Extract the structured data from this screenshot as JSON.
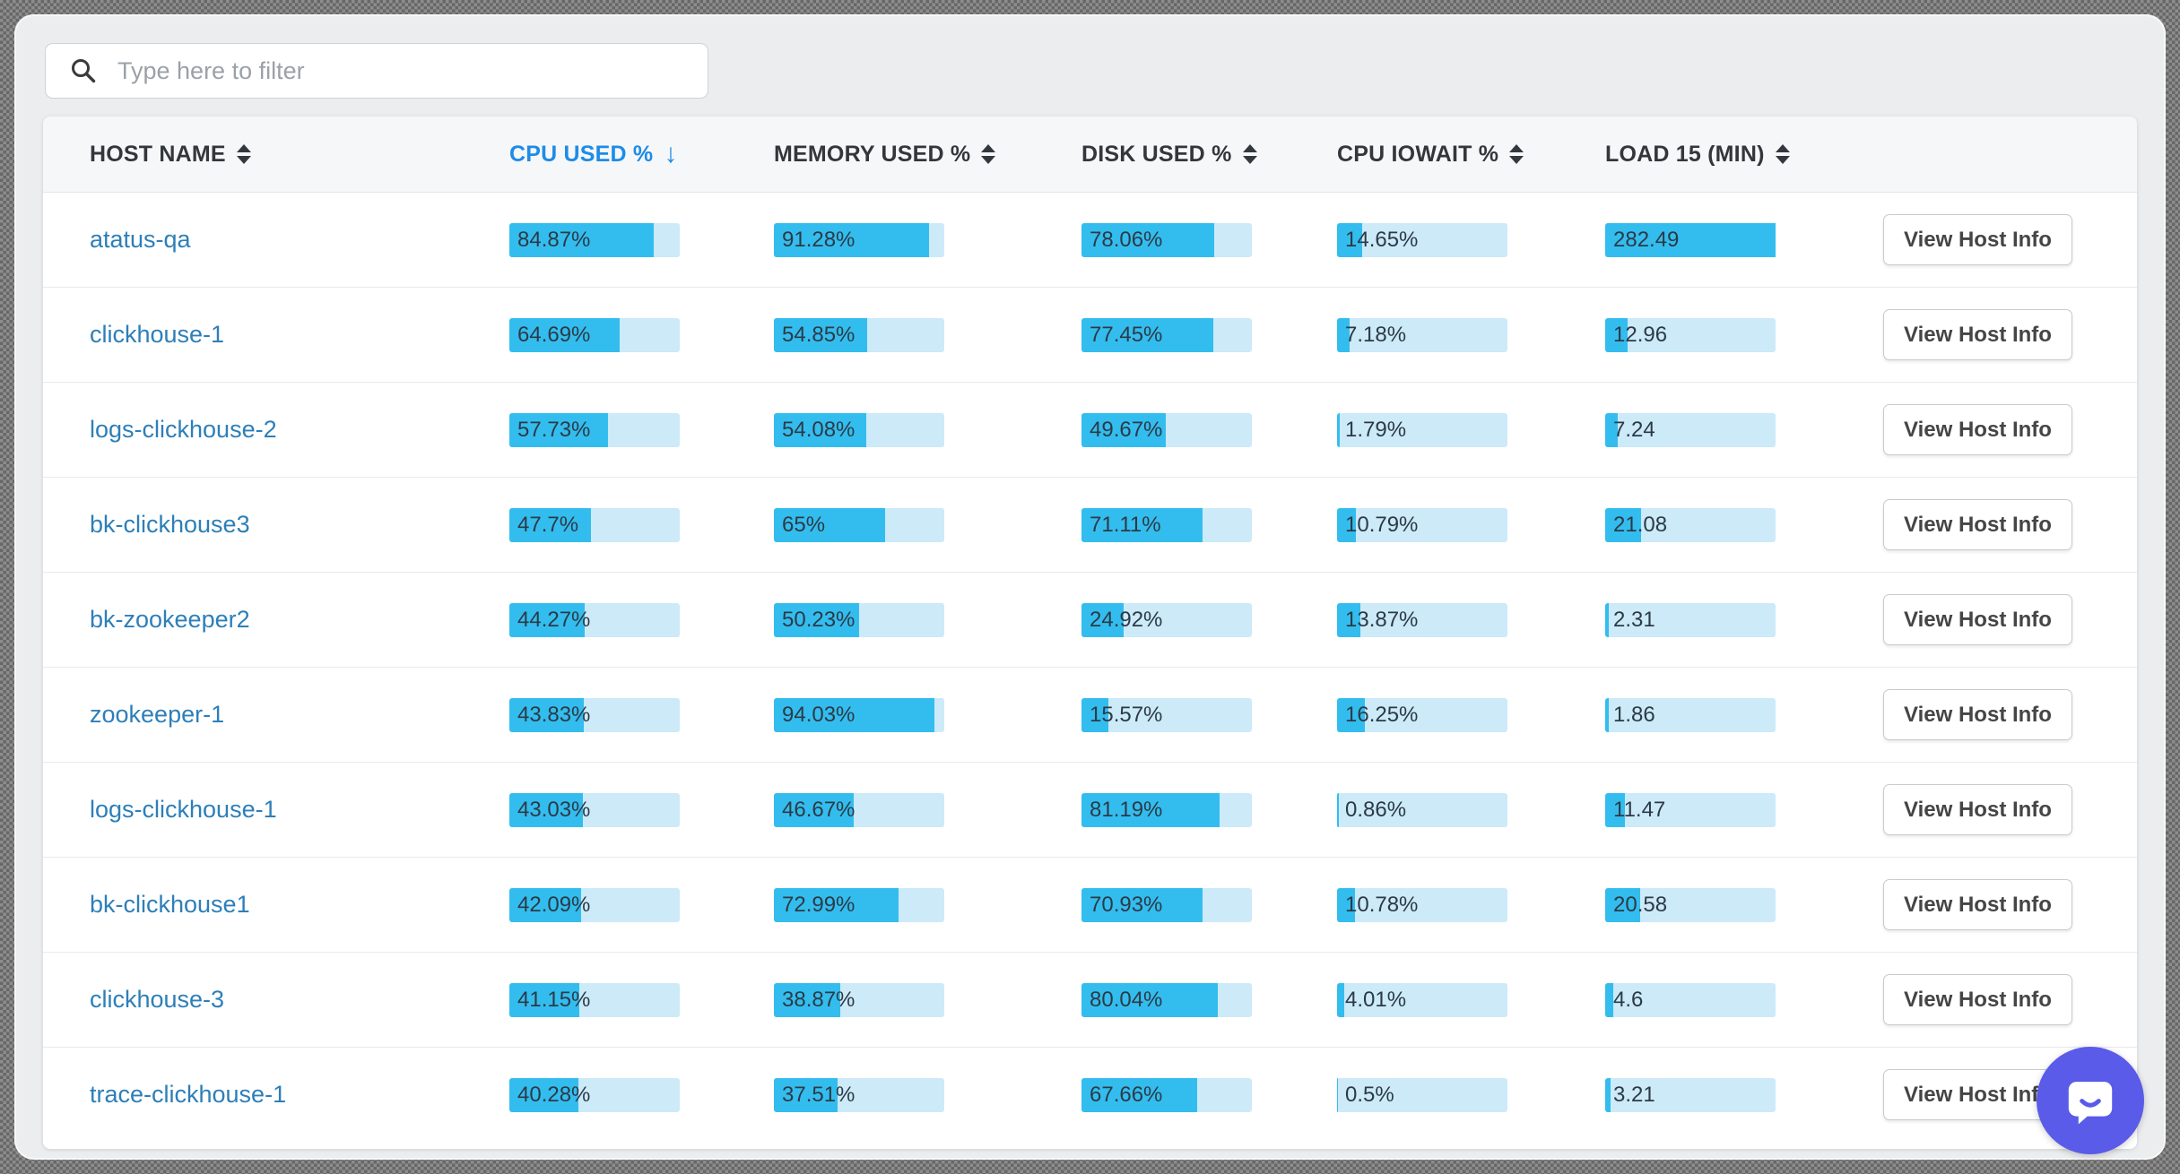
{
  "filter": {
    "placeholder": "Type here to filter"
  },
  "table": {
    "columns": [
      {
        "key": "host",
        "label": "HOST NAME",
        "sort": "none"
      },
      {
        "key": "cpu",
        "label": "CPU USED %",
        "sort": "desc"
      },
      {
        "key": "memory",
        "label": "MEMORY USED %",
        "sort": "none"
      },
      {
        "key": "disk",
        "label": "DISK USED %",
        "sort": "none"
      },
      {
        "key": "iowait",
        "label": "CPU IOWAIT %",
        "sort": "none"
      },
      {
        "key": "load15",
        "label": "LOAD 15 (MIN)",
        "sort": "none"
      }
    ],
    "action_label": "View Host Info",
    "rows": [
      {
        "host": "atatus-qa",
        "cpu": {
          "text": "84.87%",
          "pct": 84.87
        },
        "memory": {
          "text": "91.28%",
          "pct": 91.28
        },
        "disk": {
          "text": "78.06%",
          "pct": 78.06
        },
        "iowait": {
          "text": "14.65%",
          "pct": 14.65
        },
        "load15": {
          "text": "282.49",
          "pct": 100
        }
      },
      {
        "host": "clickhouse-1",
        "cpu": {
          "text": "64.69%",
          "pct": 64.69
        },
        "memory": {
          "text": "54.85%",
          "pct": 54.85
        },
        "disk": {
          "text": "77.45%",
          "pct": 77.45
        },
        "iowait": {
          "text": "7.18%",
          "pct": 7.18
        },
        "load15": {
          "text": "12.96",
          "pct": 12.96
        }
      },
      {
        "host": "logs-clickhouse-2",
        "cpu": {
          "text": "57.73%",
          "pct": 57.73
        },
        "memory": {
          "text": "54.08%",
          "pct": 54.08
        },
        "disk": {
          "text": "49.67%",
          "pct": 49.67
        },
        "iowait": {
          "text": "1.79%",
          "pct": 1.79
        },
        "load15": {
          "text": "7.24",
          "pct": 7.24
        }
      },
      {
        "host": "bk-clickhouse3",
        "cpu": {
          "text": "47.7%",
          "pct": 47.7
        },
        "memory": {
          "text": "65%",
          "pct": 65
        },
        "disk": {
          "text": "71.11%",
          "pct": 71.11
        },
        "iowait": {
          "text": "10.79%",
          "pct": 10.79
        },
        "load15": {
          "text": "21.08",
          "pct": 21.08
        }
      },
      {
        "host": "bk-zookeeper2",
        "cpu": {
          "text": "44.27%",
          "pct": 44.27
        },
        "memory": {
          "text": "50.23%",
          "pct": 50.23
        },
        "disk": {
          "text": "24.92%",
          "pct": 24.92
        },
        "iowait": {
          "text": "13.87%",
          "pct": 13.87
        },
        "load15": {
          "text": "2.31",
          "pct": 2.31
        }
      },
      {
        "host": "zookeeper-1",
        "cpu": {
          "text": "43.83%",
          "pct": 43.83
        },
        "memory": {
          "text": "94.03%",
          "pct": 94.03
        },
        "disk": {
          "text": "15.57%",
          "pct": 15.57
        },
        "iowait": {
          "text": "16.25%",
          "pct": 16.25
        },
        "load15": {
          "text": "1.86",
          "pct": 1.86
        }
      },
      {
        "host": "logs-clickhouse-1",
        "cpu": {
          "text": "43.03%",
          "pct": 43.03
        },
        "memory": {
          "text": "46.67%",
          "pct": 46.67
        },
        "disk": {
          "text": "81.19%",
          "pct": 81.19
        },
        "iowait": {
          "text": "0.86%",
          "pct": 0.86
        },
        "load15": {
          "text": "11.47",
          "pct": 11.47
        }
      },
      {
        "host": "bk-clickhouse1",
        "cpu": {
          "text": "42.09%",
          "pct": 42.09
        },
        "memory": {
          "text": "72.99%",
          "pct": 72.99
        },
        "disk": {
          "text": "70.93%",
          "pct": 70.93
        },
        "iowait": {
          "text": "10.78%",
          "pct": 10.78
        },
        "load15": {
          "text": "20.58",
          "pct": 20.58
        }
      },
      {
        "host": "clickhouse-3",
        "cpu": {
          "text": "41.15%",
          "pct": 41.15
        },
        "memory": {
          "text": "38.87%",
          "pct": 38.87
        },
        "disk": {
          "text": "80.04%",
          "pct": 80.04
        },
        "iowait": {
          "text": "4.01%",
          "pct": 4.01
        },
        "load15": {
          "text": "4.6",
          "pct": 4.6
        }
      },
      {
        "host": "trace-clickhouse-1",
        "cpu": {
          "text": "40.28%",
          "pct": 40.28
        },
        "memory": {
          "text": "37.51%",
          "pct": 37.51
        },
        "disk": {
          "text": "67.66%",
          "pct": 67.66
        },
        "iowait": {
          "text": "0.5%",
          "pct": 0.5
        },
        "load15": {
          "text": "3.21",
          "pct": 3.21
        }
      }
    ]
  },
  "icons": {
    "search": "magnifier",
    "sort_inactive": "up-down-triangles",
    "sort_active": "down-arrow",
    "chat": "speech-bubble-smile"
  },
  "colors": {
    "accent_sort_blue": "#1d8ce8",
    "host_link_blue": "#2d7fb8",
    "bar_fill": "#33bdee",
    "bar_track": "#cdeaf8",
    "chat_bubble": "#5a5be9",
    "header_bg": "#f6f7f8",
    "page_bg": "#ecedef"
  }
}
